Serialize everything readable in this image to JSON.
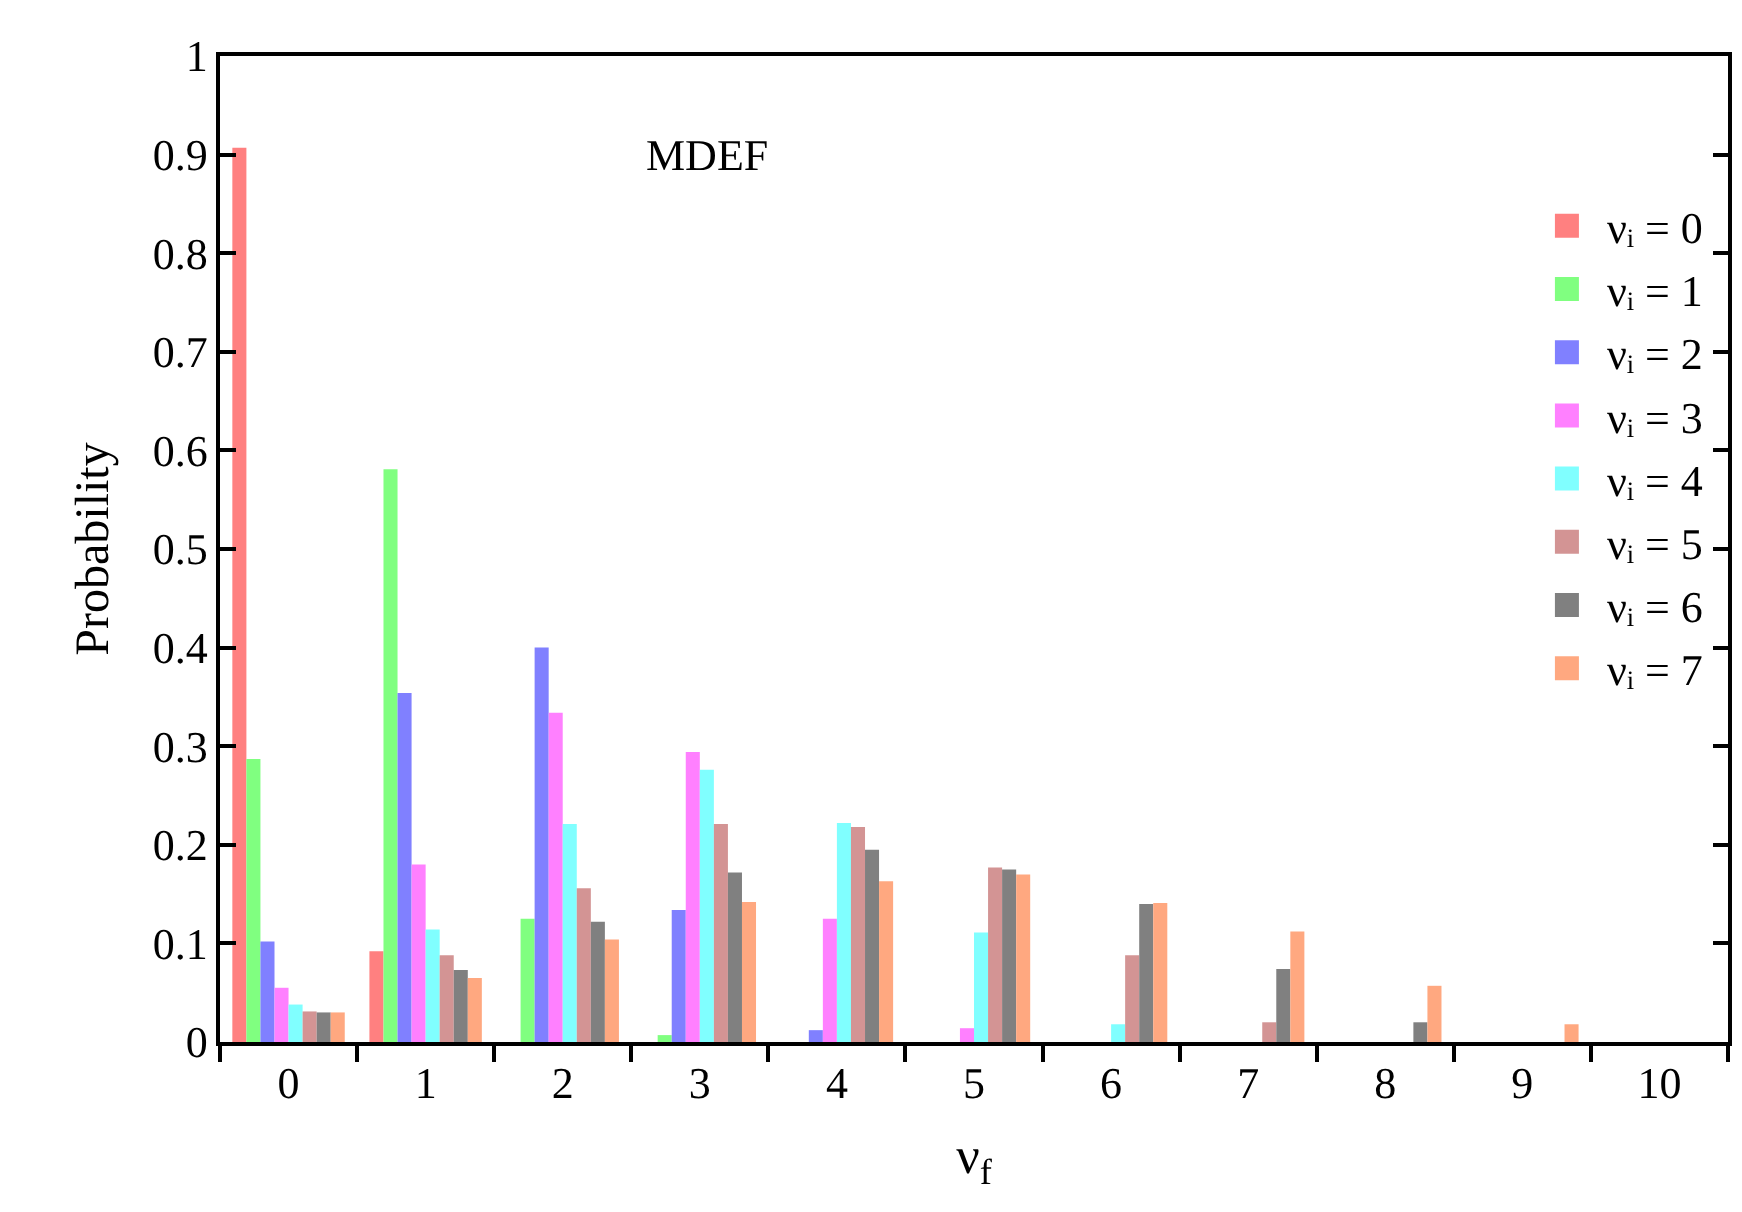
{
  "chart_data": {
    "type": "bar",
    "xlabel": "ν$_{f}$",
    "ylabel": "Probability",
    "annotations": [
      "MDEF"
    ],
    "categories": [
      "0",
      "1",
      "2",
      "3",
      "4",
      "5",
      "6",
      "7",
      "8",
      "9",
      "10"
    ],
    "series": [
      {
        "name": "νᵢ = 0",
        "color": "#ff8080",
        "values": [
          0.907,
          0.092,
          0,
          0,
          0,
          0,
          0,
          0,
          0,
          0,
          0
        ]
      },
      {
        "name": "νᵢ = 1",
        "color": "#80ff80",
        "values": [
          0.287,
          0.581,
          0.125,
          0.007,
          0,
          0,
          0,
          0,
          0,
          0,
          0
        ]
      },
      {
        "name": "νᵢ = 2",
        "color": "#8080ff",
        "values": [
          0.102,
          0.354,
          0.4,
          0.134,
          0.012,
          0,
          0,
          0,
          0,
          0,
          0
        ]
      },
      {
        "name": "νᵢ = 3",
        "color": "#ff80ff",
        "values": [
          0.055,
          0.18,
          0.334,
          0.294,
          0.125,
          0.014,
          0,
          0,
          0,
          0,
          0
        ]
      },
      {
        "name": "νᵢ = 4",
        "color": "#80ffff",
        "values": [
          0.038,
          0.114,
          0.221,
          0.276,
          0.222,
          0.111,
          0.018,
          0,
          0,
          0,
          0
        ]
      },
      {
        "name": "νᵢ = 5",
        "color": "#d39494",
        "values": [
          0.031,
          0.088,
          0.156,
          0.221,
          0.218,
          0.177,
          0.088,
          0.02,
          0,
          0,
          0
        ]
      },
      {
        "name": "νᵢ = 6",
        "color": "#808080",
        "values": [
          0.03,
          0.073,
          0.122,
          0.172,
          0.195,
          0.175,
          0.14,
          0.074,
          0.02,
          0,
          0
        ]
      },
      {
        "name": "νᵢ = 7",
        "color": "#ffa880",
        "values": [
          0.03,
          0.065,
          0.104,
          0.142,
          0.163,
          0.17,
          0.141,
          0.112,
          0.057,
          0.018,
          0
        ]
      }
    ],
    "ylim": [
      0,
      1
    ],
    "yticks": [
      0,
      0.1,
      0.2,
      0.3,
      0.4,
      0.5,
      0.6,
      0.7,
      0.8,
      0.9,
      1
    ],
    "legend": "top right"
  }
}
